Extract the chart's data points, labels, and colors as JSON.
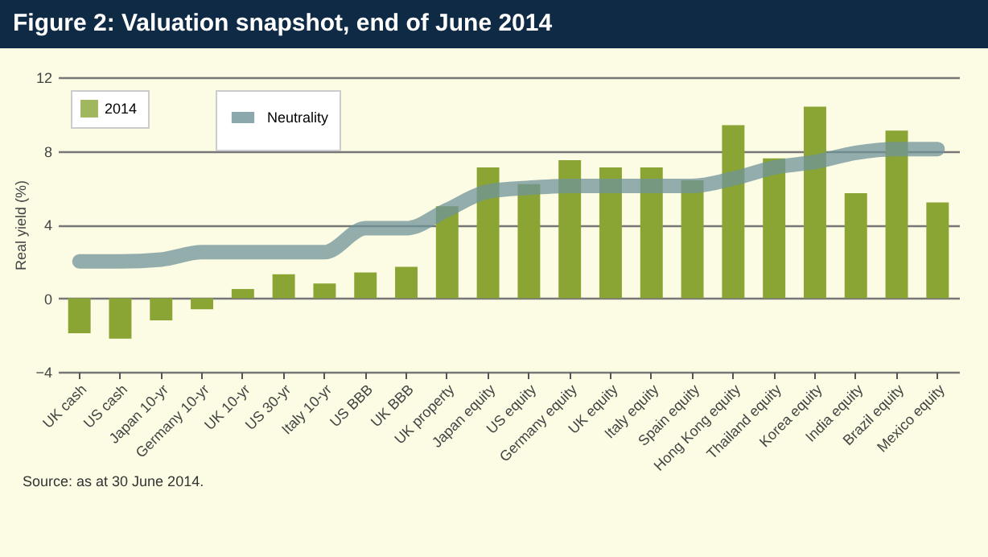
{
  "chart_data": {
    "type": "bar",
    "title": "Figure 2: Valuation snapshot, end of June 2014",
    "ylabel": "Real yield (%)",
    "categories": [
      "UK cash",
      "US cash",
      "Japan 10-yr",
      "Germany 10-yr",
      "UK 10-yr",
      "US 30-yr",
      "Italy 10-yr",
      "US BBB",
      "UK BBB",
      "UK property",
      "Japan equity",
      "US equity",
      "Germany equity",
      "UK equity",
      "Italy equity",
      "Spain equity",
      "Hong Kong equity",
      "Thailand equity",
      "Korea equity",
      "India equity",
      "Brazil equity",
      "Mexico equity"
    ],
    "series": [
      {
        "name": "2014",
        "color": "#8aa534",
        "values": [
          -1.9,
          -2.2,
          -1.2,
          -0.6,
          0.5,
          1.3,
          0.8,
          1.4,
          1.7,
          5.0,
          7.1,
          6.2,
          7.5,
          7.1,
          7.1,
          6.4,
          9.4,
          7.6,
          10.4,
          5.7,
          9.1,
          5.2
        ]
      },
      {
        "name": "Neutrality",
        "type": "line",
        "color": "#6f9399",
        "values": [
          2.0,
          2.0,
          2.1,
          2.5,
          2.5,
          2.5,
          2.5,
          3.8,
          3.8,
          4.8,
          5.8,
          6.0,
          6.1,
          6.1,
          6.1,
          6.1,
          6.5,
          7.1,
          7.4,
          7.9,
          8.1,
          8.1
        ]
      }
    ],
    "ylim": [
      -4,
      12
    ],
    "yticks": [
      -4,
      0,
      4,
      8,
      12
    ],
    "grid": "y",
    "legend": "top left",
    "annotations": [
      "Source: as at 30 June 2014."
    ]
  }
}
